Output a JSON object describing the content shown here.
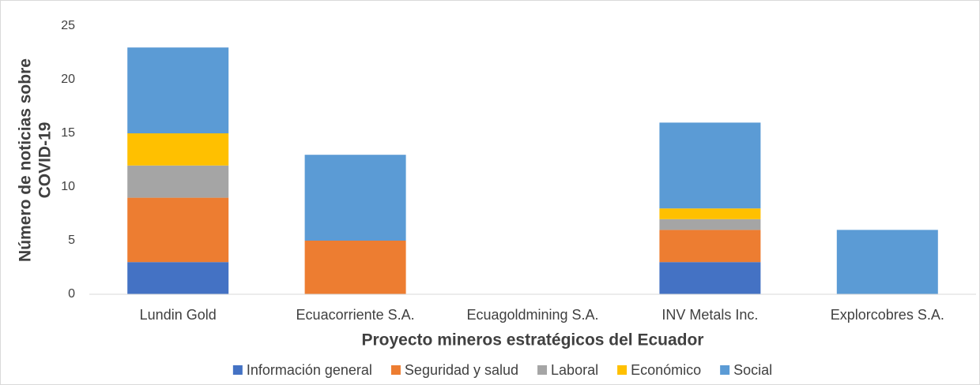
{
  "chart_data": {
    "type": "stacked_bar",
    "y_label": [
      "Número de noticias sobre",
      "COVID-19"
    ],
    "x_label": "Proyecto mineros estratégicos del Ecuador",
    "categories": [
      "Lundin Gold",
      "Ecuacorriente S.A.",
      "Ecuagoldmining S.A.",
      "INV Metals Inc.",
      "Explorcobres S.A."
    ],
    "series": [
      {
        "name": "Información general",
        "color": "#4472c4",
        "values": [
          3,
          0,
          0,
          3,
          0
        ]
      },
      {
        "name": "Seguridad y salud",
        "color": "#ed7d31",
        "values": [
          6,
          5,
          0,
          3,
          0
        ]
      },
      {
        "name": "Laboral",
        "color": "#a5a5a5",
        "values": [
          3,
          0,
          0,
          1,
          0
        ]
      },
      {
        "name": "Económico",
        "color": "#ffc000",
        "values": [
          3,
          0,
          0,
          1,
          0
        ]
      },
      {
        "name": "Social",
        "color": "#5b9bd5",
        "values": [
          8,
          8,
          0,
          8,
          6
        ]
      }
    ],
    "ylim": [
      0,
      25
    ],
    "yticks": [
      0,
      5,
      10,
      15,
      20,
      25
    ],
    "grid": false,
    "legend": "bottom"
  }
}
